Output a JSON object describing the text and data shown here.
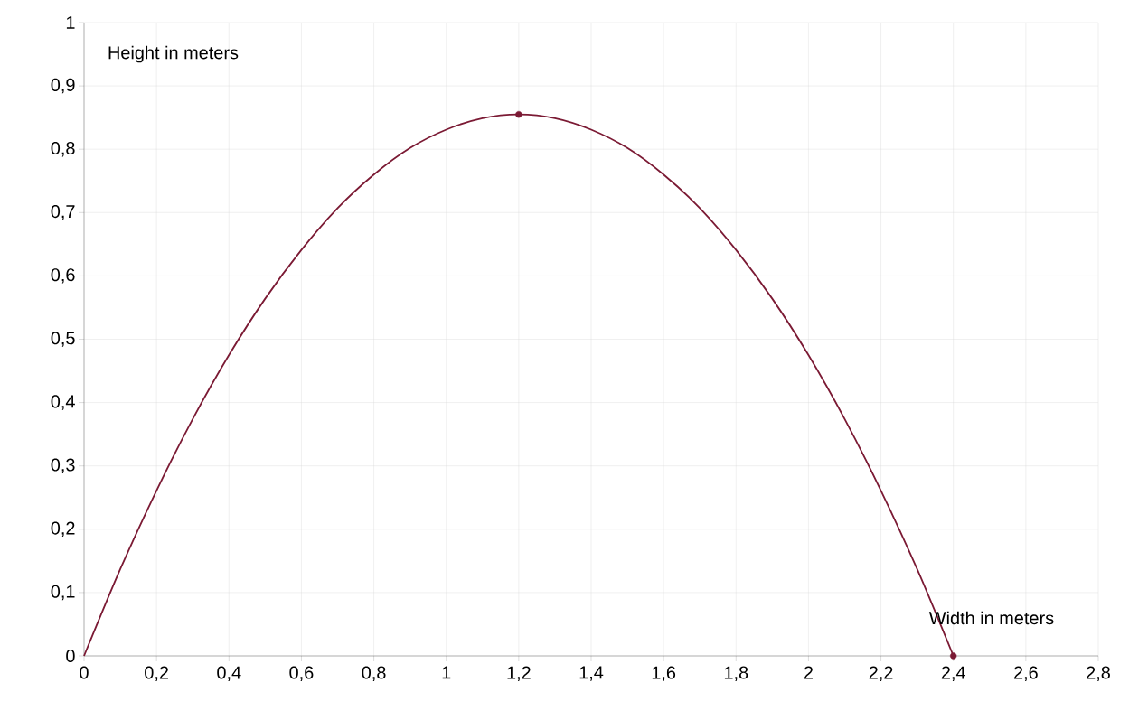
{
  "chart_data": {
    "type": "line",
    "xlabel": "Width in meters",
    "ylabel": "Height in meters",
    "series": [
      {
        "color": "#7b1a34",
        "marker": "none",
        "x": [
          0,
          0.1,
          0.2,
          0.3,
          0.4,
          0.5,
          0.6,
          0.7,
          0.8,
          0.9,
          1.0,
          1.1,
          1.2,
          1.3,
          1.4,
          1.5,
          1.6,
          1.7,
          1.8,
          1.9,
          2.0,
          2.1,
          2.2,
          2.3,
          2.4
        ],
        "values": [
          0,
          0.137,
          0.261,
          0.374,
          0.475,
          0.564,
          0.641,
          0.707,
          0.76,
          0.802,
          0.831,
          0.849,
          0.855,
          0.849,
          0.831,
          0.802,
          0.76,
          0.707,
          0.641,
          0.564,
          0.475,
          0.374,
          0.261,
          0.137,
          0
        ]
      },
      {
        "type": "scatter",
        "color": "#7b1a34",
        "marker": "circle",
        "x": [
          1.2,
          2.4
        ],
        "values": [
          0.855,
          0
        ]
      }
    ],
    "xlim": [
      0,
      2.8
    ],
    "ylim": [
      0,
      1
    ],
    "xticks": [
      0,
      {
        "value": 0.2,
        "label": "0,2"
      },
      {
        "value": 0.4,
        "label": "0,4"
      },
      {
        "value": 0.6,
        "label": "0,6"
      },
      {
        "value": 0.8,
        "label": "0,8"
      },
      1,
      {
        "value": 1.2,
        "label": "1,2"
      },
      {
        "value": 1.4,
        "label": "1,4"
      },
      {
        "value": 1.6,
        "label": "1,6"
      },
      {
        "value": 1.8,
        "label": "1,8"
      },
      2,
      {
        "value": 2.2,
        "label": "2,2"
      },
      {
        "value": 2.4,
        "label": "2,4"
      },
      {
        "value": 2.6,
        "label": "2,6"
      },
      {
        "value": 2.8,
        "label": "2,8"
      }
    ],
    "yticks": [
      0,
      {
        "value": 0.1,
        "label": "0,1"
      },
      {
        "value": 0.2,
        "label": "0,2"
      },
      {
        "value": 0.3,
        "label": "0,3"
      },
      {
        "value": 0.4,
        "label": "0,4"
      },
      {
        "value": 0.5,
        "label": "0,5"
      },
      {
        "value": 0.6,
        "label": "0,6"
      },
      {
        "value": 0.7,
        "label": "0,7"
      },
      {
        "value": 0.8,
        "label": "0,8"
      },
      {
        "value": 0.9,
        "label": "0,9"
      },
      1
    ],
    "grid": true
  }
}
